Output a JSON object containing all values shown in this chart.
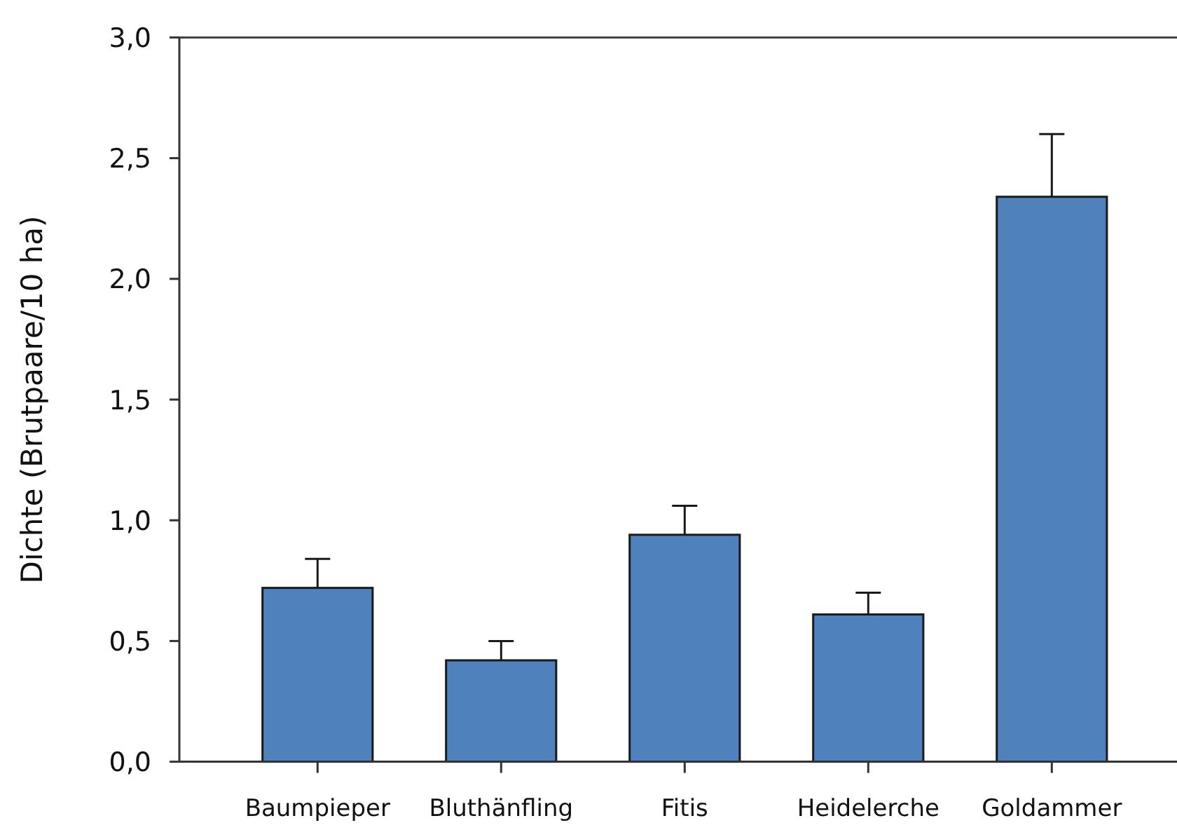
{
  "chart_data": {
    "type": "bar",
    "ylabel": "Dichte (Brutpaare/10 ha)",
    "categories": [
      "Baumpieper",
      "Bluthänfling",
      "Fitis",
      "Heidelerche",
      "Goldammer"
    ],
    "values": [
      0.72,
      0.42,
      0.94,
      0.61,
      2.34
    ],
    "color": "#4f81bd",
    "errors": [
      [
        0.72,
        0.84
      ],
      [
        0.42,
        0.5
      ],
      [
        0.94,
        1.06
      ],
      [
        0.61,
        0.7
      ],
      [
        2.34,
        2.6
      ]
    ],
    "ylim": [
      0,
      3
    ],
    "yticks": [
      {
        "value": 0,
        "label": "0,0"
      },
      {
        "value": 0.5,
        "label": "0,5"
      },
      {
        "value": 1,
        "label": "1,0"
      },
      {
        "value": 1.5,
        "label": "1,5"
      },
      {
        "value": 2,
        "label": "2,0"
      },
      {
        "value": 2.5,
        "label": "2,5"
      },
      {
        "value": 3,
        "label": "3,0"
      }
    ]
  }
}
